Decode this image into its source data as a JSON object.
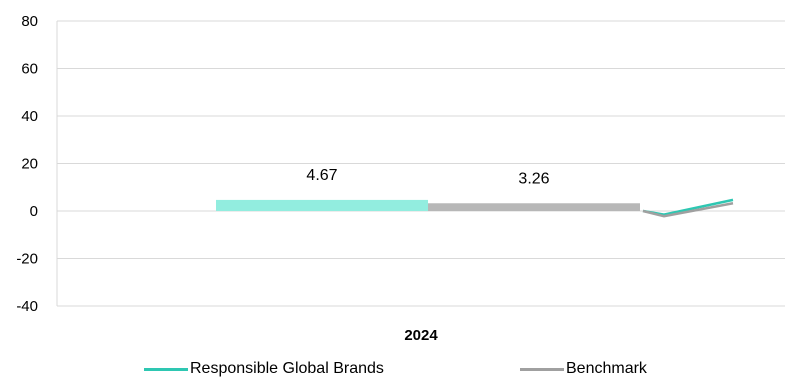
{
  "chart_data": {
    "type": "bar",
    "categories": [
      "2024"
    ],
    "series": [
      {
        "name": "Responsible Global Brands",
        "values": [
          4.67
        ],
        "color": "#92EDDF",
        "line_color": "#2EC7B2"
      },
      {
        "name": "Benchmark",
        "values": [
          3.26
        ],
        "color": "#B7B7B7",
        "line_color": "#A0A0A0"
      }
    ],
    "data_labels": [
      "4.67",
      "3.26"
    ],
    "trend_lines": [
      {
        "series": "Responsible Global Brands",
        "values": [
          0,
          -1.5,
          4.67
        ]
      },
      {
        "series": "Benchmark",
        "values": [
          0,
          -2.2,
          3.26
        ]
      }
    ],
    "y_ticks": [
      "80",
      "60",
      "40",
      "20",
      "0",
      "-20",
      "-40"
    ],
    "ylim": [
      -40,
      80
    ],
    "grid": true,
    "legend_position": "bottom"
  },
  "legend": {
    "items": [
      {
        "label": "Responsible Global Brands",
        "color": "#2EC7B2"
      },
      {
        "label": "Benchmark",
        "color": "#A0A0A0"
      }
    ]
  }
}
